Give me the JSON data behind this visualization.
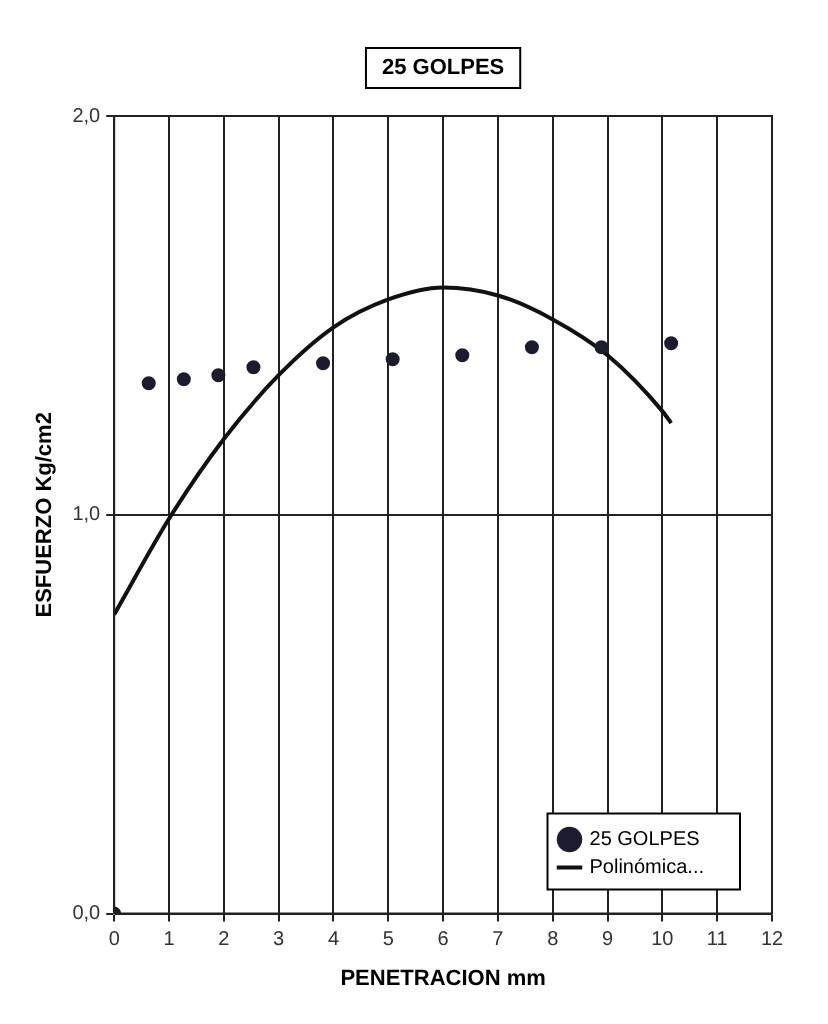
{
  "chart_data": {
    "type": "scatter",
    "title": "25 GOLPES",
    "xlabel": "PENETRACION mm",
    "ylabel": "ESFUERZO Kg/cm2",
    "xlim": [
      0,
      12
    ],
    "xticks": [
      0,
      1,
      2,
      3,
      4,
      5,
      6,
      7,
      8,
      9,
      10,
      11,
      12
    ],
    "ylim": [
      0,
      2
    ],
    "yticks": [
      {
        "value": 0,
        "label": "0,0"
      },
      {
        "value": 1,
        "label": "1,0"
      },
      {
        "value": 2,
        "label": "2,0"
      }
    ],
    "grid": true,
    "legend": "bottom right",
    "series": [
      {
        "name": "25 GOLPES",
        "marker": "circle",
        "color": "#1c1c2e",
        "x": [
          0,
          0.63,
          1.27,
          1.9,
          2.54,
          3.81,
          5.08,
          6.35,
          7.62,
          8.89,
          10.16
        ],
        "values": [
          0,
          1.33,
          1.34,
          1.35,
          1.37,
          1.38,
          1.39,
          1.4,
          1.42,
          1.42,
          1.43
        ]
      },
      {
        "name": "Polinómica...",
        "type": "line",
        "marker": "none",
        "line_style": "solid",
        "color": "#111111",
        "x": [
          0,
          1,
          2,
          3,
          4,
          5,
          6,
          7,
          8,
          9,
          10,
          10.16
        ],
        "values": [
          0.75,
          0.99,
          1.19,
          1.35,
          1.47,
          1.54,
          1.57,
          1.55,
          1.49,
          1.4,
          1.26,
          1.23
        ]
      }
    ]
  }
}
